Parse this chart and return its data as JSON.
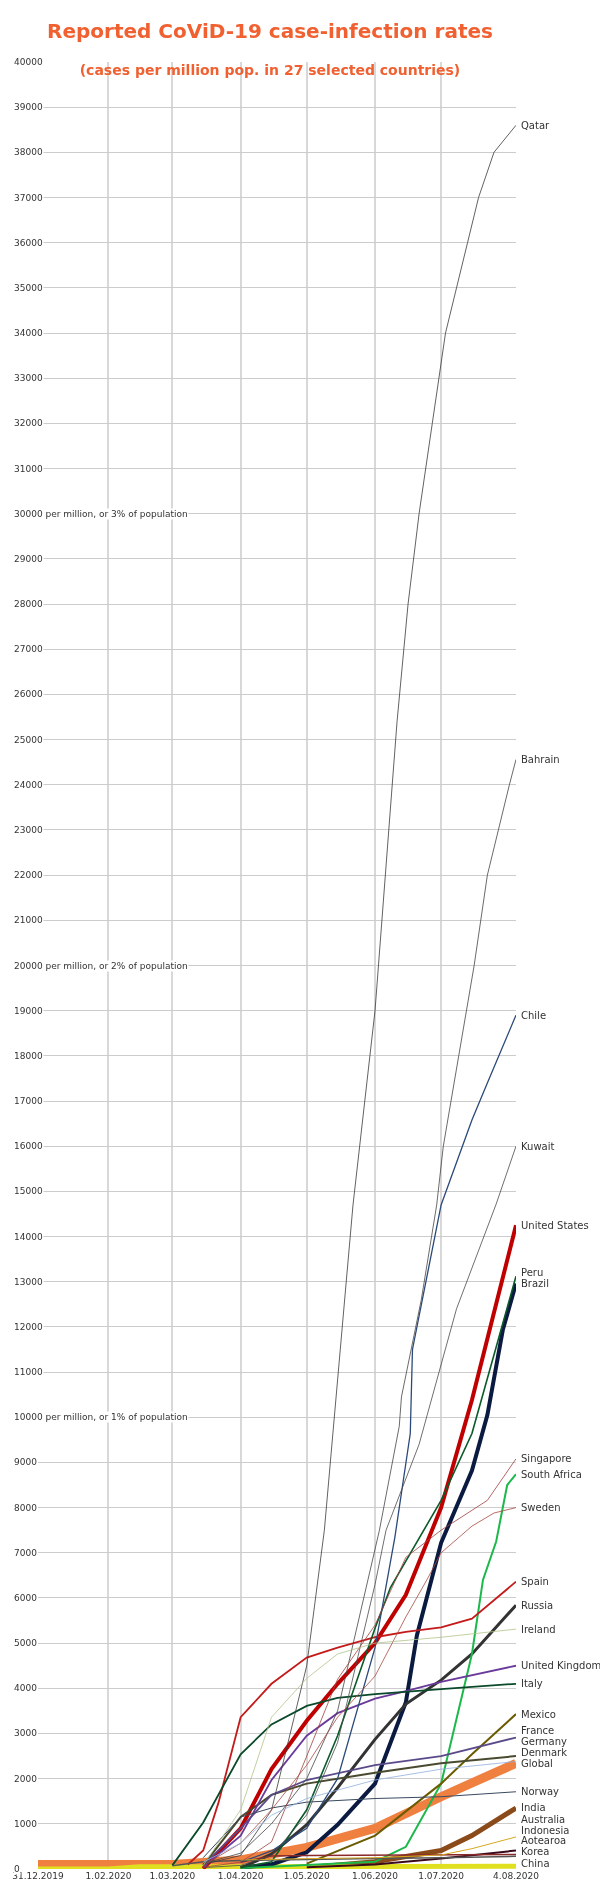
{
  "chart_data": {
    "type": "line",
    "title": "Reported CoViD-19 case-infection rates",
    "subtitle": "(cases per million pop. in 27 selected countries)",
    "xlim": [
      "2019-12-31",
      "2020-08-04"
    ],
    "xticks": [
      {
        "value": "2019-12-31",
        "label": "31.12.2019"
      },
      {
        "value": "2020-02-01",
        "label": "1.02.2020"
      },
      {
        "value": "2020-03-01",
        "label": "1.03.2020"
      },
      {
        "value": "2020-04-01",
        "label": "1.04.2020"
      },
      {
        "value": "2020-05-01",
        "label": "1.05.2020"
      },
      {
        "value": "2020-06-01",
        "label": "1.06.2020"
      },
      {
        "value": "2020-07-01",
        "label": "1.07.2020"
      },
      {
        "value": "2020-08-04",
        "label": "4.08.2020"
      }
    ],
    "ylim": [
      0,
      40000
    ],
    "yticks": [
      0,
      1000,
      2000,
      3000,
      4000,
      5000,
      6000,
      7000,
      8000,
      9000,
      {
        "value": 10000,
        "label": "10000 per million, or 1% of population"
      },
      11000,
      12000,
      13000,
      14000,
      15000,
      16000,
      17000,
      18000,
      19000,
      {
        "value": 20000,
        "label": "20000 per million, or 2% of population"
      },
      21000,
      22000,
      23000,
      24000,
      25000,
      26000,
      27000,
      28000,
      29000,
      {
        "value": 30000,
        "label": "30000 per million, or 3% of population"
      },
      31000,
      32000,
      33000,
      34000,
      35000,
      36000,
      37000,
      38000,
      39000,
      40000
    ],
    "grid": true,
    "legend": false,
    "marker": "none",
    "line_style": "solid",
    "series": [
      {
        "name": "Qatar",
        "color": "#3a3a3a",
        "x": [
          "2020-03-15",
          "2020-04-01",
          "2020-04-15",
          "2020-05-01",
          "2020-05-09",
          "2020-05-22",
          "2020-06-01",
          "2020-06-11",
          "2020-06-16",
          "2020-06-21",
          "2020-06-27",
          "2020-07-03",
          "2020-07-08",
          "2020-07-13",
          "2020-07-18",
          "2020-07-25",
          "2020-08-04"
        ],
        "values": [
          100,
          300,
          1300,
          4500,
          7500,
          14700,
          19000,
          25400,
          28000,
          30000,
          32000,
          34000,
          35000,
          36000,
          37000,
          38000,
          38600
        ]
      },
      {
        "name": "Bahrain",
        "color": "#444444",
        "x": [
          "2020-03-15",
          "2020-04-01",
          "2020-04-15",
          "2020-05-01",
          "2020-05-15",
          "2020-06-03",
          "2020-06-12",
          "2020-06-13",
          "2020-06-22",
          "2020-06-29",
          "2020-07-02",
          "2020-07-09",
          "2020-07-16",
          "2020-07-22",
          "2020-07-27",
          "2020-08-01",
          "2020-08-04"
        ],
        "values": [
          120,
          350,
          1000,
          2000,
          3500,
          7500,
          9800,
          10450,
          12600,
          14700,
          16000,
          18000,
          20000,
          22000,
          23000,
          24000,
          24560
        ]
      },
      {
        "name": "Chile",
        "color": "#2b4a7a",
        "x": [
          "2020-04-01",
          "2020-04-15",
          "2020-05-01",
          "2020-05-15",
          "2020-06-01",
          "2020-06-10",
          "2020-06-17",
          "2020-06-18",
          "2020-07-01",
          "2020-07-15",
          "2020-07-22",
          "2020-08-04"
        ],
        "values": [
          150,
          400,
          900,
          2000,
          4900,
          7340,
          9640,
          11500,
          14700,
          16580,
          17400,
          18900
        ]
      },
      {
        "name": "Kuwait",
        "color": "#4a4a4a",
        "x": [
          "2020-03-15",
          "2020-04-01",
          "2020-04-15",
          "2020-05-01",
          "2020-05-15",
          "2020-06-01",
          "2020-06-06",
          "2020-06-21",
          "2020-07-08",
          "2020-07-26",
          "2020-08-04"
        ],
        "values": [
          30,
          80,
          300,
          1200,
          2800,
          6300,
          7500,
          9400,
          12400,
          14720,
          16000
        ]
      },
      {
        "name": "United States",
        "color": "#c00000",
        "x": [
          "2020-03-15",
          "2020-04-01",
          "2020-04-15",
          "2020-05-01",
          "2020-05-15",
          "2020-06-01",
          "2020-06-15",
          "2020-07-01",
          "2020-07-15",
          "2020-08-04"
        ],
        "values": [
          10,
          900,
          2210,
          3280,
          4100,
          5000,
          6070,
          8000,
          10380,
          14250
        ]
      },
      {
        "name": "Peru",
        "color": "#0b5a2a",
        "x": [
          "2020-04-01",
          "2020-04-15",
          "2020-05-01",
          "2020-05-15",
          "2020-06-01",
          "2020-06-08",
          "2020-07-01",
          "2020-07-15",
          "2020-08-04"
        ],
        "values": [
          30,
          160,
          1310,
          2950,
          5330,
          6230,
          8160,
          9640,
          13120
        ]
      },
      {
        "name": "Brazil",
        "color": "#0a1a40",
        "x": [
          "2020-04-01",
          "2020-04-15",
          "2020-05-01",
          "2020-05-15",
          "2020-06-01",
          "2020-06-15",
          "2020-06-20",
          "2020-07-01",
          "2020-07-15",
          "2020-07-22",
          "2020-07-29",
          "2020-08-04"
        ],
        "values": [
          30,
          100,
          370,
          980,
          1890,
          3690,
          5170,
          7220,
          8820,
          10050,
          11930,
          12960
        ]
      },
      {
        "name": "Singapore",
        "color": "#a04040",
        "x": [
          "2020-03-15",
          "2020-04-01",
          "2020-04-15",
          "2020-05-01",
          "2020-05-15",
          "2020-06-01",
          "2020-06-15",
          "2020-07-01",
          "2020-07-22",
          "2020-08-04"
        ],
        "values": [
          40,
          150,
          600,
          2500,
          4200,
          5400,
          6900,
          7500,
          8160,
          9080
        ]
      },
      {
        "name": "South Africa",
        "color": "#1cb84a",
        "x": [
          "2020-04-01",
          "2020-05-01",
          "2020-05-15",
          "2020-06-01",
          "2020-06-15",
          "2020-07-01",
          "2020-07-15",
          "2020-07-20",
          "2020-07-26",
          "2020-07-31",
          "2020-08-04"
        ],
        "values": [
          20,
          90,
          120,
          160,
          490,
          1890,
          4760,
          6400,
          7250,
          8500,
          8740
        ]
      },
      {
        "name": "Sweden",
        "color": "#a84a40",
        "x": [
          "2020-03-15",
          "2020-04-01",
          "2020-04-15",
          "2020-05-01",
          "2020-05-15",
          "2020-06-01",
          "2020-06-15",
          "2020-06-25",
          "2020-07-01",
          "2020-07-15",
          "2020-07-25",
          "2020-08-04"
        ],
        "values": [
          80,
          570,
          1310,
          2300,
          3360,
          4270,
          5580,
          6440,
          7000,
          7590,
          7880,
          8000
        ]
      },
      {
        "name": "Spain",
        "color": "#c41a1a",
        "x": [
          "2020-03-08",
          "2020-03-15",
          "2020-03-22",
          "2020-04-01",
          "2020-04-15",
          "2020-05-01",
          "2020-05-15",
          "2020-06-01",
          "2020-06-15",
          "2020-07-01",
          "2020-07-15",
          "2020-08-04"
        ],
        "values": [
          100,
          410,
          1480,
          3360,
          4100,
          4680,
          4900,
          5130,
          5250,
          5350,
          5540,
          6360
        ]
      },
      {
        "name": "Russia",
        "color": "#333333",
        "x": [
          "2020-04-01",
          "2020-04-15",
          "2020-05-01",
          "2020-05-15",
          "2020-06-01",
          "2020-06-15",
          "2020-07-01",
          "2020-07-15",
          "2020-08-04"
        ],
        "values": [
          20,
          330,
          980,
          1800,
          2870,
          3650,
          4180,
          4760,
          5840
        ]
      },
      {
        "name": "Ireland",
        "color": "#b0c488",
        "x": [
          "2020-03-15",
          "2020-04-01",
          "2020-04-15",
          "2020-05-01",
          "2020-05-15",
          "2020-06-01",
          "2020-07-01",
          "2020-08-04"
        ],
        "values": [
          80,
          1310,
          3360,
          4220,
          4760,
          5000,
          5130,
          5310
        ]
      },
      {
        "name": "United Kingdom",
        "color": "#6a3a9a",
        "x": [
          "2020-03-15",
          "2020-04-01",
          "2020-04-15",
          "2020-05-01",
          "2020-05-15",
          "2020-06-01",
          "2020-06-15",
          "2020-07-01",
          "2020-08-04"
        ],
        "values": [
          40,
          740,
          1970,
          2950,
          3450,
          3770,
          3940,
          4140,
          4500
        ]
      },
      {
        "name": "Italy",
        "color": "#0a4a2a",
        "x": [
          "2020-03-01",
          "2020-03-15",
          "2020-04-01",
          "2020-04-15",
          "2020-05-01",
          "2020-05-15",
          "2020-06-01",
          "2020-07-01",
          "2020-08-04"
        ],
        "values": [
          80,
          1030,
          2540,
          3200,
          3610,
          3790,
          3870,
          3980,
          4100
        ]
      },
      {
        "name": "Mexico",
        "color": "#6a5a00",
        "x": [
          "2020-05-01",
          "2020-06-01",
          "2020-07-01",
          "2020-07-15",
          "2020-08-04"
        ],
        "values": [
          120,
          740,
          1890,
          2540,
          3430
        ]
      },
      {
        "name": "France",
        "color": "#5a4a8a",
        "x": [
          "2020-03-15",
          "2020-04-01",
          "2020-04-15",
          "2020-05-01",
          "2020-06-01",
          "2020-07-01",
          "2020-08-04"
        ],
        "values": [
          80,
          900,
          1640,
          1970,
          2300,
          2500,
          2910
        ]
      },
      {
        "name": "Germany",
        "color": "#4a4a30",
        "x": [
          "2020-03-15",
          "2020-04-01",
          "2020-04-15",
          "2020-05-01",
          "2020-06-01",
          "2020-07-01",
          "2020-08-04"
        ],
        "values": [
          80,
          1150,
          1640,
          1890,
          2130,
          2340,
          2500
        ]
      },
      {
        "name": "Global",
        "color": "#f08040",
        "x": [
          "2019-12-31",
          "2020-03-01",
          "2020-04-01",
          "2020-05-01",
          "2020-06-01",
          "2020-07-01",
          "2020-08-04"
        ],
        "values": [
          100,
          100,
          200,
          480,
          900,
          1600,
          2340
        ]
      },
      {
        "name": "Denmark",
        "color": "#90b0e0",
        "x": [
          "2020-03-15",
          "2020-04-01",
          "2020-04-15",
          "2020-05-01",
          "2020-06-01",
          "2020-07-01",
          "2020-08-04"
        ],
        "values": [
          150,
          570,
          1190,
          1560,
          1970,
          2210,
          2380
        ]
      },
      {
        "name": "Norway",
        "color": "#3a4a60",
        "x": [
          "2020-03-15",
          "2020-04-01",
          "2020-04-15",
          "2020-05-01",
          "2020-06-01",
          "2020-07-01",
          "2020-08-04"
        ],
        "values": [
          250,
          1150,
          1350,
          1480,
          1560,
          1600,
          1710
        ]
      },
      {
        "name": "India",
        "color": "#8a4a1a",
        "x": [
          "2020-05-01",
          "2020-06-01",
          "2020-07-01",
          "2020-07-15",
          "2020-08-04"
        ],
        "values": [
          30,
          160,
          410,
          740,
          1350
        ]
      },
      {
        "name": "Australia",
        "color": "#d8a820",
        "x": [
          "2020-04-01",
          "2020-05-01",
          "2020-06-01",
          "2020-07-01",
          "2020-07-15",
          "2020-08-04"
        ],
        "values": [
          200,
          230,
          250,
          310,
          450,
          710
        ]
      },
      {
        "name": "Indonesia",
        "color": "#3a0a1a",
        "x": [
          "2020-05-01",
          "2020-06-01",
          "2020-07-01",
          "2020-08-04"
        ],
        "values": [
          40,
          100,
          230,
          410
        ]
      },
      {
        "name": "Aotearoa",
        "color": "#8a2a2a",
        "x": [
          "2020-04-01",
          "2020-04-15",
          "2020-05-01",
          "2020-08-04"
        ],
        "values": [
          150,
          290,
          300,
          320
        ]
      },
      {
        "name": "Korea",
        "color": "#555555",
        "x": [
          "2020-03-01",
          "2020-03-15",
          "2020-04-01",
          "2020-05-01",
          "2020-06-01",
          "2020-07-01",
          "2020-08-04"
        ],
        "values": [
          70,
          160,
          190,
          210,
          230,
          250,
          280
        ]
      },
      {
        "name": "China",
        "color": "#e0e020",
        "x": [
          "2019-12-31",
          "2020-02-01",
          "2020-02-15",
          "2020-03-01",
          "2020-08-04"
        ],
        "values": [
          0,
          0,
          50,
          50,
          60
        ]
      }
    ]
  }
}
